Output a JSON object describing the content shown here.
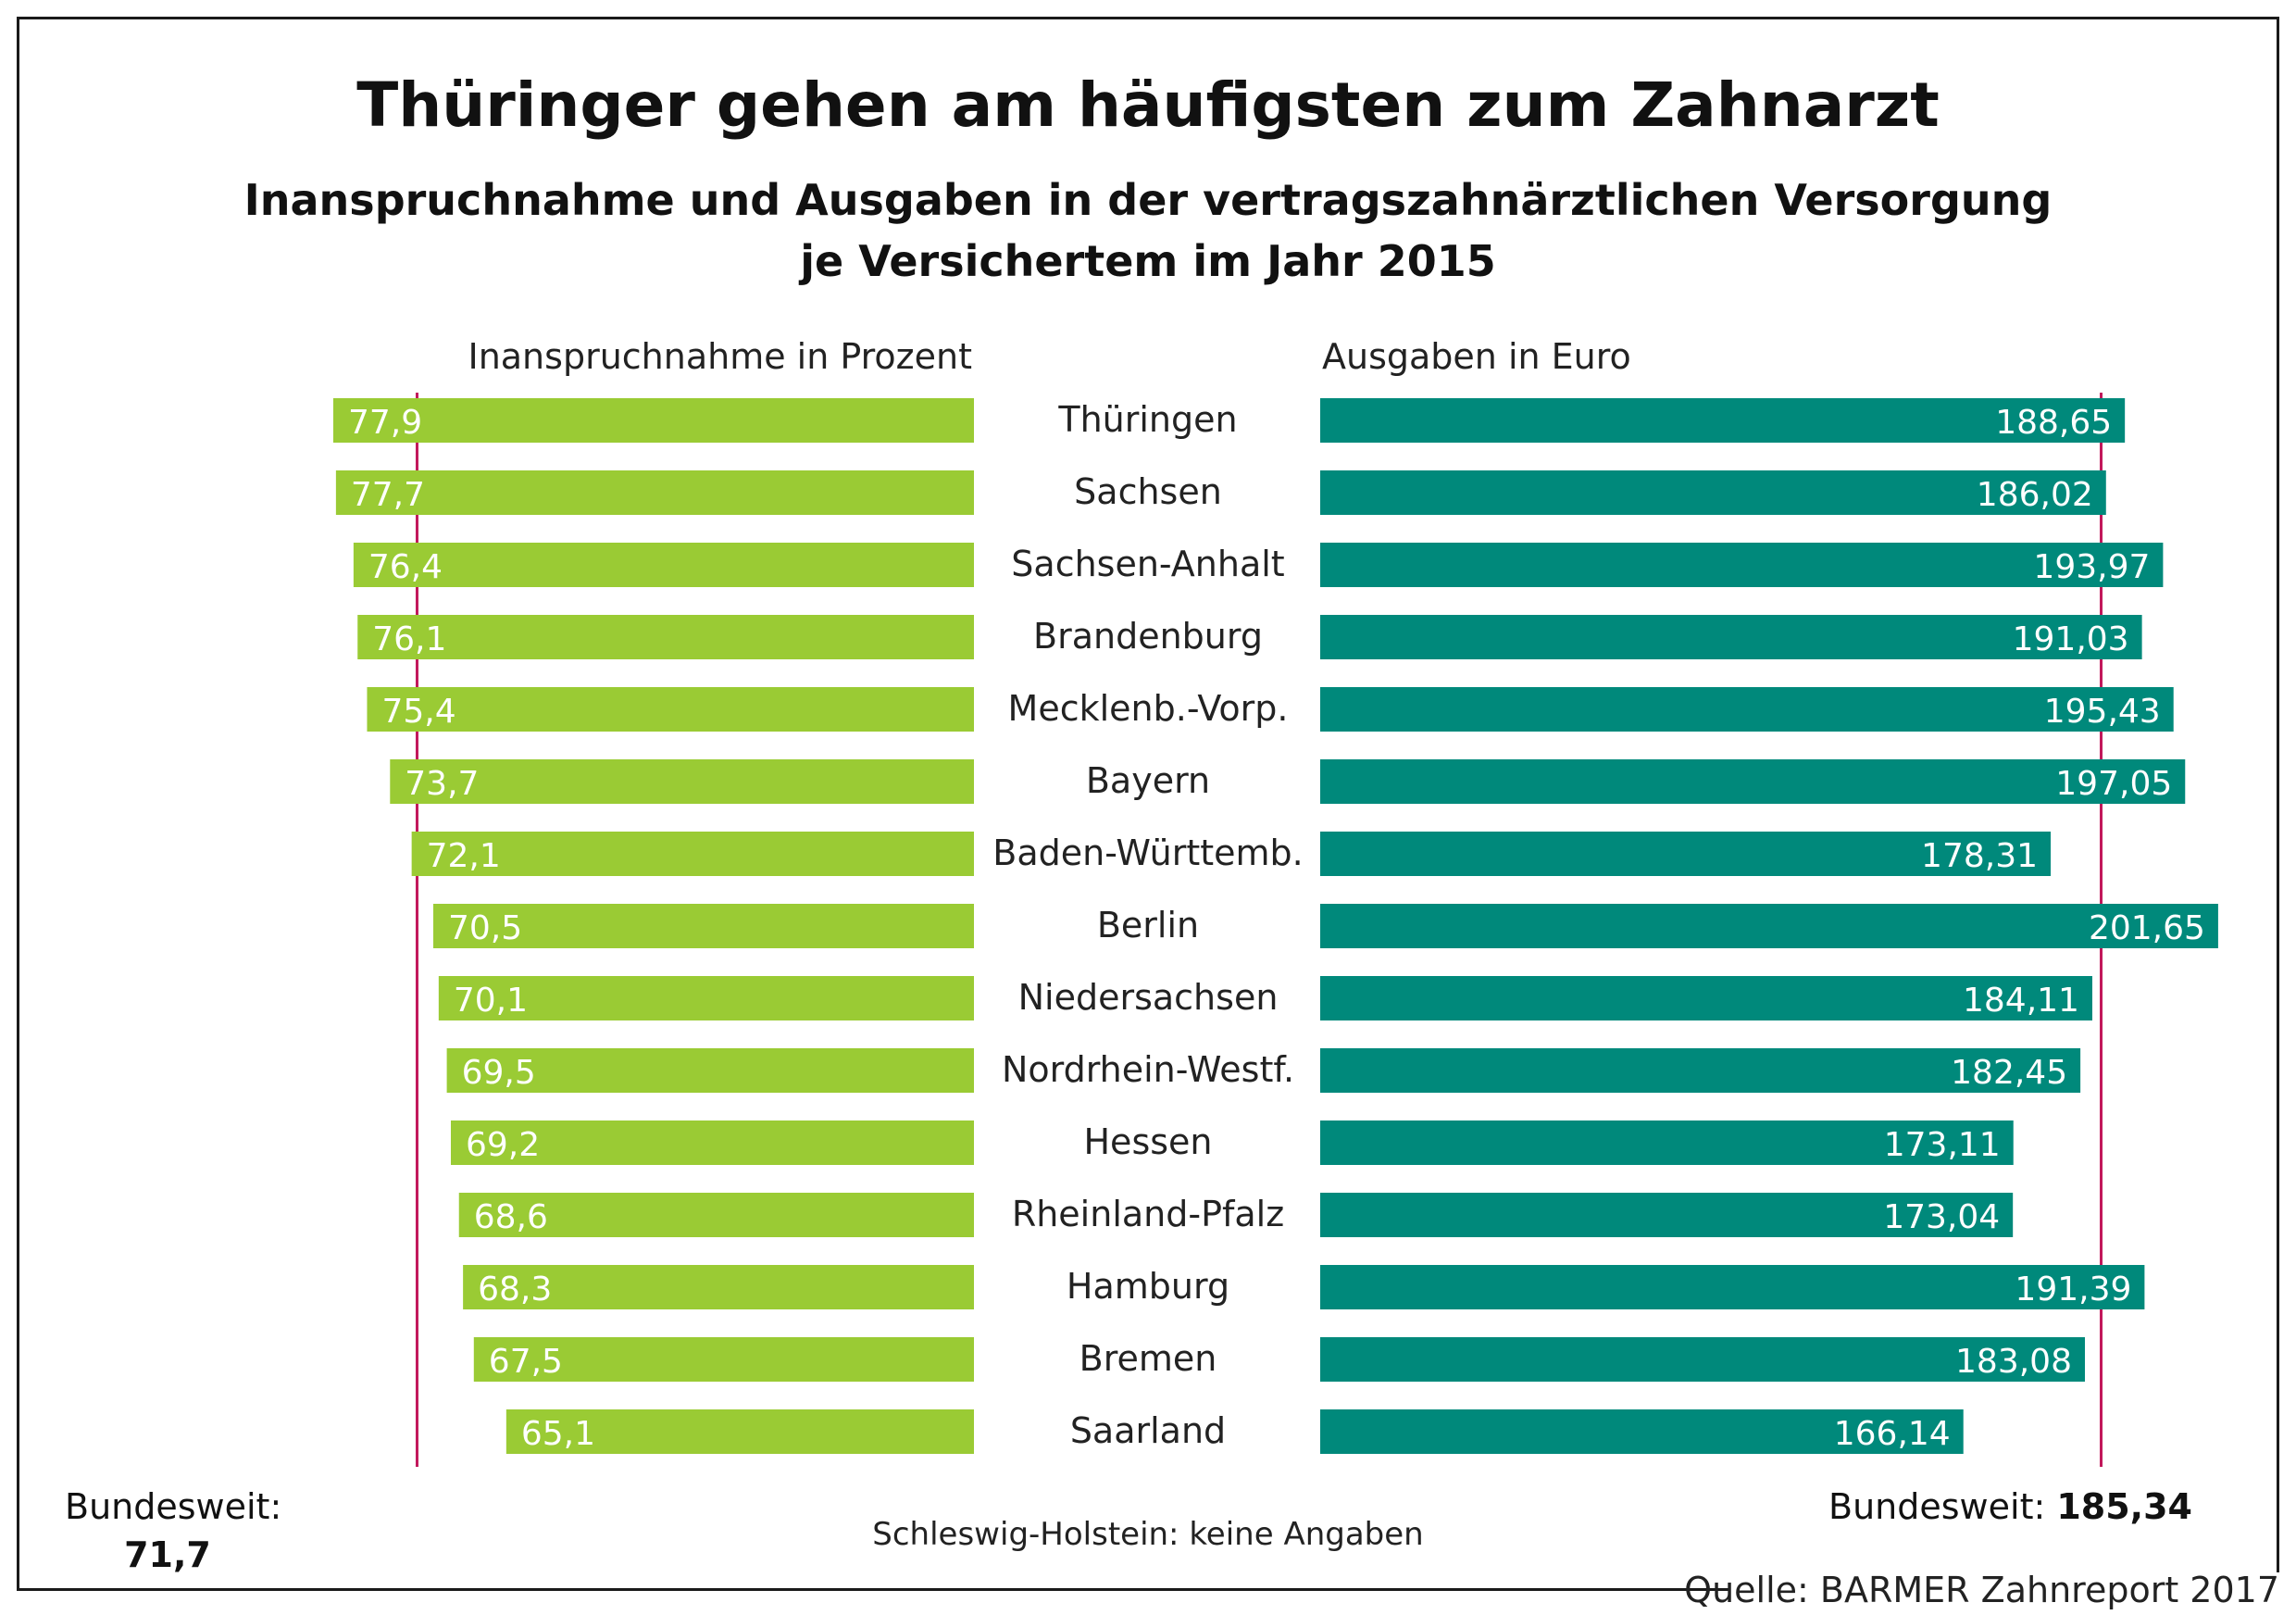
{
  "chart_data": {
    "type": "bar",
    "title": "Thüringer gehen am häufigsten zum Zahnarzt",
    "subtitle_lines": [
      "Inanspruchnahme und Ausgaben in der vertragszahnärztlichen Versorgung",
      "je Versichertem im Jahr 2015"
    ],
    "categories": [
      "Thüringen",
      "Sachsen",
      "Sachsen-Anhalt",
      "Brandenburg",
      "Mecklenb.-Vorp.",
      "Bayern",
      "Baden-Württemb.",
      "Berlin",
      "Niedersachsen",
      "Nordrhein-Westf.",
      "Hessen",
      "Rheinland-Pfalz",
      "Hamburg",
      "Bremen",
      "Saarland"
    ],
    "series": [
      {
        "name": "Inanspruchnahme in Prozent",
        "values": [
          77.9,
          77.7,
          76.4,
          76.1,
          75.4,
          73.7,
          72.1,
          70.5,
          70.1,
          69.5,
          69.2,
          68.6,
          68.3,
          67.5,
          65.1
        ],
        "labels": [
          "77,9",
          "77,7",
          "76,4",
          "76,1",
          "75,4",
          "73,7",
          "72,1",
          "70,5",
          "70,1",
          "69,5",
          "69,2",
          "68,6",
          "68,3",
          "67,5",
          "65,1"
        ],
        "color": "#9acb34",
        "reference": {
          "label": "Bundesweit:",
          "value": 71.7,
          "value_label": "71,7"
        }
      },
      {
        "name": "Ausgaben in Euro",
        "values": [
          188.65,
          186.02,
          193.97,
          191.03,
          195.43,
          197.05,
          178.31,
          201.65,
          184.11,
          182.45,
          173.11,
          173.04,
          191.39,
          183.08,
          166.14
        ],
        "labels": [
          "188,65",
          "186,02",
          "193,97",
          "191,03",
          "195,43",
          "197,05",
          "178,31",
          "201,65",
          "184,11",
          "182,45",
          "173,11",
          "173,04",
          "191,39",
          "183,08",
          "166,14"
        ],
        "color": "#00897b",
        "reference": {
          "label": "Bundesweit:",
          "value": 185.34,
          "value_label": "185,34"
        }
      }
    ],
    "reference_line_color": "#c2185b",
    "footnote": "Schleswig-Holstein: keine Angaben",
    "source": "Quelle: BARMER Zahnreport 2017"
  }
}
